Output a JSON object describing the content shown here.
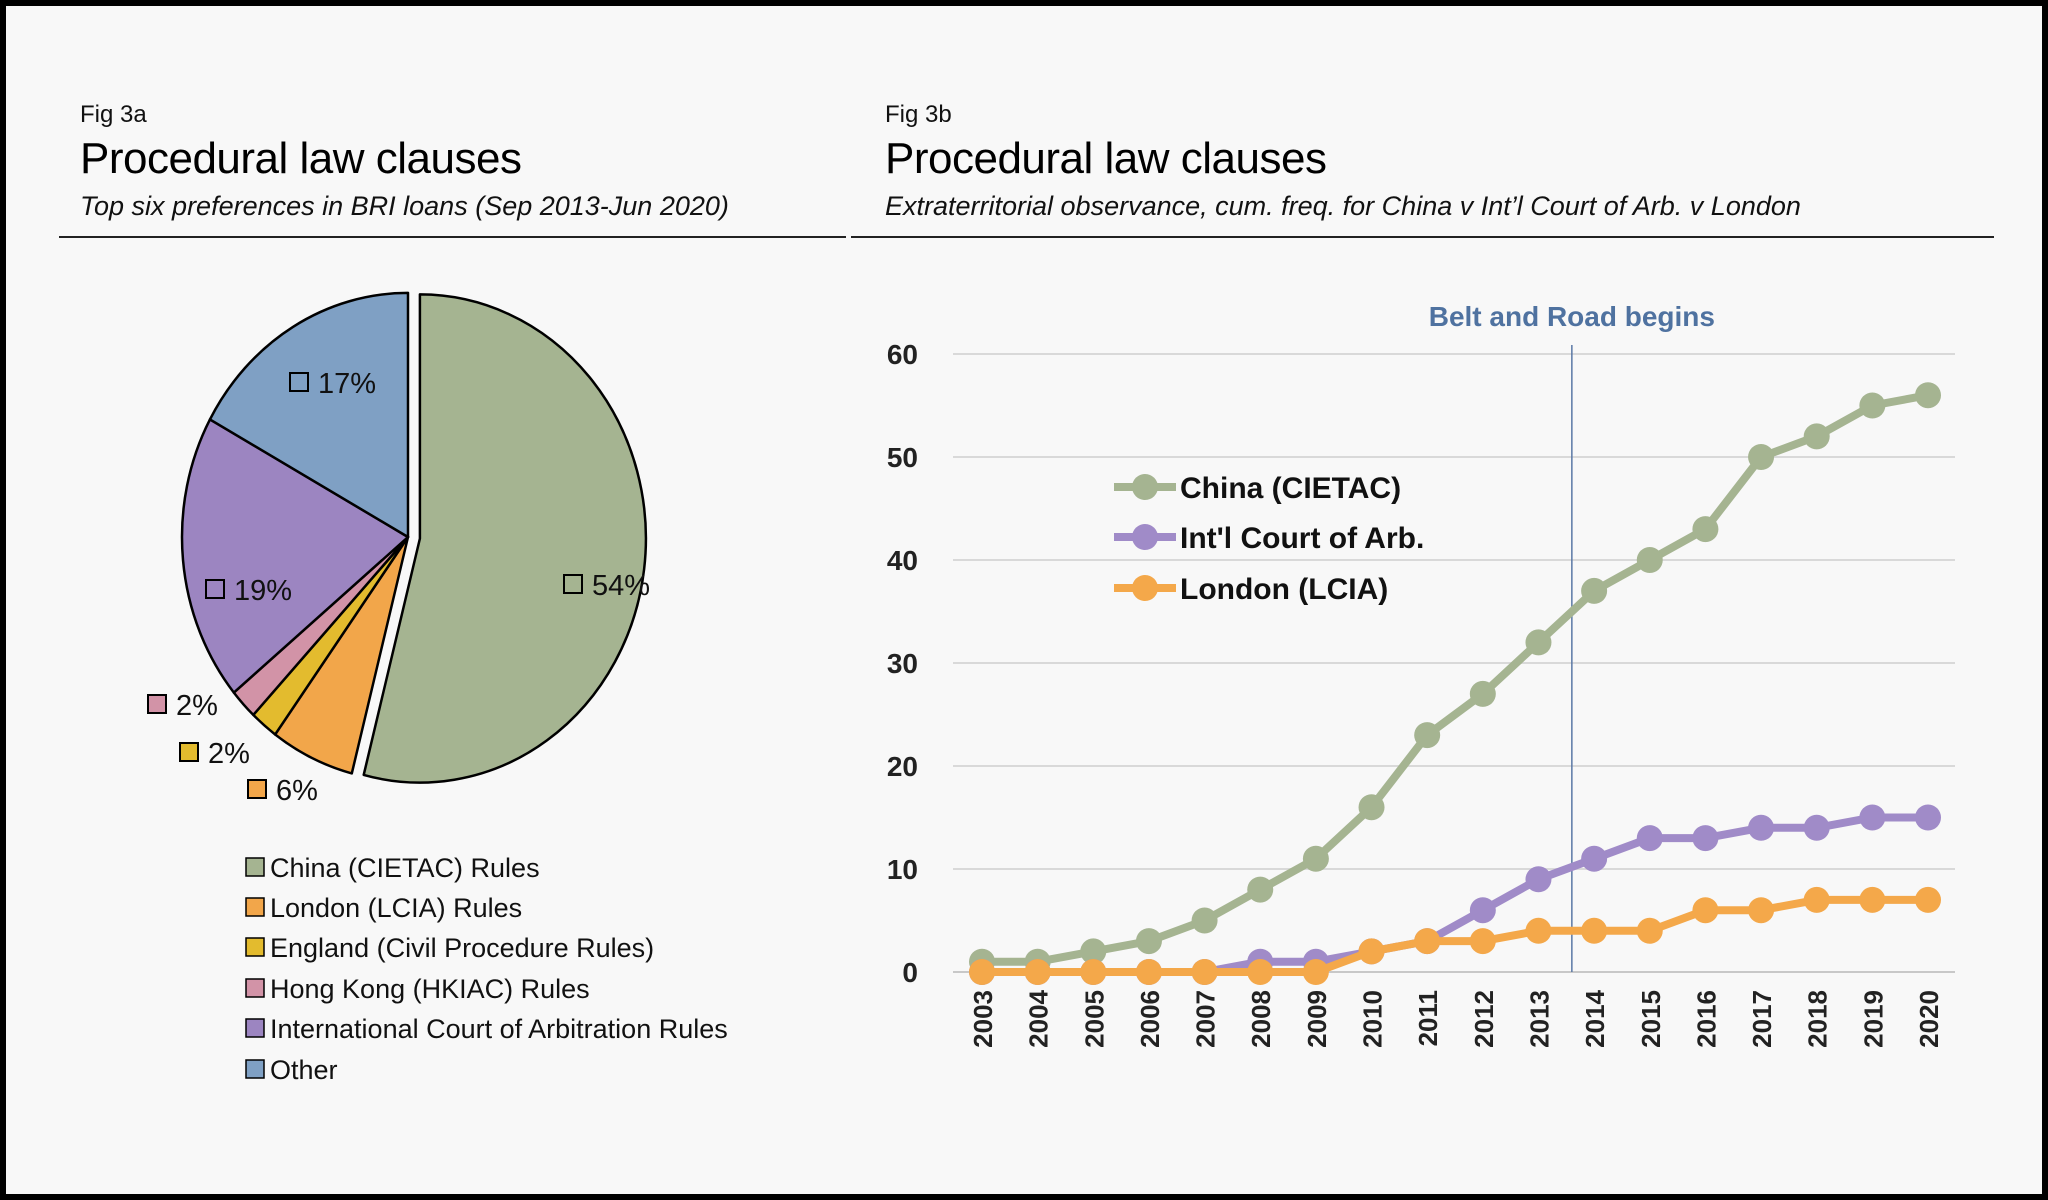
{
  "fig_a": {
    "label": "Fig 3a",
    "title": "Procedural law clauses",
    "subtitle": "Top six preferences in BRI loans (Sep 2013-Jun 2020)"
  },
  "fig_b": {
    "label": "Fig 3b",
    "title": "Procedural law clauses",
    "subtitle": "Extraterritorial observance, cum. freq. for China v Int’l Court of Arb. v London"
  },
  "chart_data": [
    {
      "type": "pie",
      "title": "Procedural law clauses",
      "categories": [
        "China (CIETAC) Rules",
        "London (LCIA) Rules",
        "England (Civil Procedure Rules)",
        "Hong Kong (HKIAC) Rules",
        "International Court of Arbitration Rules",
        "Other"
      ],
      "values": [
        54,
        6,
        2,
        2,
        19,
        17
      ],
      "labels": [
        "54%",
        "6%",
        "2%",
        "2%",
        "19%",
        "17%"
      ],
      "colors": [
        "#a5b491",
        "#f2a64a",
        "#e3bb2e",
        "#d293a7",
        "#9c85c1",
        "#7fa0c4"
      ],
      "exploded": "China (CIETAC) Rules",
      "legend": "bottom"
    },
    {
      "type": "line",
      "title": "Procedural law clauses",
      "x": [
        "2003",
        "2004",
        "2005",
        "2006",
        "2007",
        "2008",
        "2009",
        "2010",
        "2011",
        "2012",
        "2013",
        "2014",
        "2015",
        "2016",
        "2017",
        "2018",
        "2019",
        "2020"
      ],
      "series": [
        {
          "name": "China (CIETAC)",
          "color": "#a5b491",
          "values": [
            1,
            1,
            2,
            3,
            5,
            8,
            11,
            16,
            23,
            27,
            32,
            37,
            40,
            43,
            50,
            52,
            55,
            56
          ]
        },
        {
          "name": "Int'l Court of Arb.",
          "color": "#a08bc8",
          "values": [
            0,
            0,
            0,
            0,
            0,
            1,
            1,
            2,
            3,
            6,
            9,
            11,
            13,
            13,
            14,
            14,
            15,
            15
          ]
        },
        {
          "name": "London (LCIA)",
          "color": "#f4a84a",
          "values": [
            0,
            0,
            0,
            0,
            0,
            0,
            0,
            2,
            3,
            3,
            4,
            4,
            4,
            6,
            6,
            7,
            7,
            7
          ]
        }
      ],
      "ylim": [
        0,
        60
      ],
      "yticks": [
        "0",
        "10",
        "20",
        "30",
        "40",
        "50",
        "60"
      ],
      "grid": true,
      "legend": "top-left",
      "annotation": {
        "text": "Belt and Road begins",
        "at_x": 2013.6,
        "color": "#4f72a0"
      }
    }
  ]
}
